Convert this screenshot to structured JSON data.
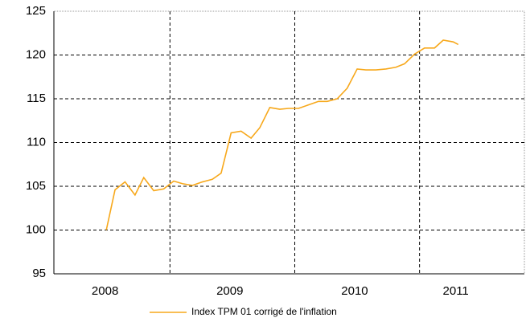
{
  "chart_data": {
    "type": "line",
    "x": [
      2008.49,
      2008.56,
      2008.64,
      2008.72,
      2008.79,
      2008.87,
      2008.95,
      2009.03,
      2009.1,
      2009.18,
      2009.26,
      2009.34,
      2009.41,
      2009.49,
      2009.57,
      2009.65,
      2009.72,
      2009.8,
      2009.88,
      2009.95,
      2010.03,
      2010.11,
      2010.19,
      2010.26,
      2010.34,
      2010.42,
      2010.5,
      2010.57,
      2010.65,
      2010.73,
      2010.81,
      2010.88,
      2010.96,
      2011.04,
      2011.12,
      2011.19,
      2011.27,
      2011.31
    ],
    "series": [
      {
        "name": "Index TPM 01 corrigé de l'inflation",
        "color": "#f7a81b",
        "values": [
          100.0,
          104.6,
          105.5,
          104.0,
          106.0,
          104.5,
          104.7,
          105.6,
          105.3,
          105.1,
          105.5,
          105.8,
          106.5,
          111.1,
          111.3,
          110.5,
          111.7,
          114.0,
          113.8,
          113.9,
          113.9,
          114.3,
          114.7,
          114.7,
          115.0,
          116.2,
          118.4,
          118.3,
          118.3,
          118.4,
          118.6,
          119.0,
          120.1,
          120.8,
          120.8,
          121.7,
          121.5,
          121.2
        ]
      }
    ],
    "xlim": [
      2008.07,
      2011.84
    ],
    "xticks": [
      {
        "value": 2008.48,
        "label": "2008"
      },
      {
        "value": 2009.48,
        "label": "2009"
      },
      {
        "value": 2010.48,
        "label": "2010"
      },
      {
        "value": 2011.29,
        "label": "2011"
      }
    ],
    "xgrid": [
      2009,
      2010,
      2011
    ],
    "ylim": [
      95,
      125
    ],
    "yticks": [
      95,
      100,
      105,
      110,
      115,
      120,
      125
    ],
    "grid": true,
    "legend": "bottom"
  }
}
